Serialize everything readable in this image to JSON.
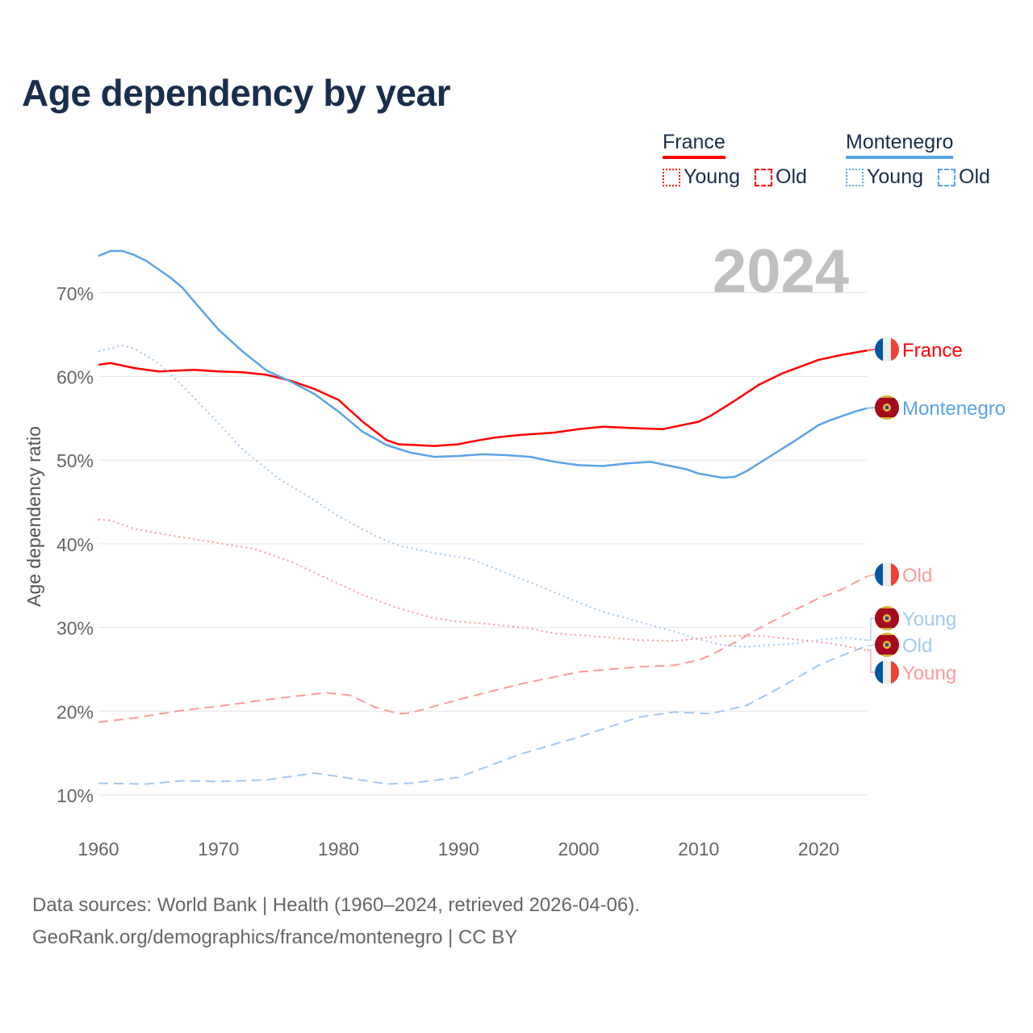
{
  "colors": {
    "france": "#ff0000",
    "france_light": "#ff9999",
    "montenegro": "#5ba3ea",
    "montenegro_light": "#a4c9f2",
    "title": "#1a2e4c",
    "year": "#c0c0c0"
  },
  "legend": {
    "france": {
      "label": "France",
      "young": "Young",
      "old": "Old"
    },
    "montenegro": {
      "label": "Montenegro",
      "young": "Young",
      "old": "Old"
    }
  },
  "footer": {
    "line1": "Data sources: World Bank | Health (1960–2024, retrieved 2026-04-06).",
    "line2": "GeoRank.org/demographics/france/montenegro | CC BY"
  },
  "chart_data": {
    "type": "line",
    "title": "Age dependency by year",
    "year_label": "2024",
    "ylabel": "Age dependency ratio",
    "xlim": [
      1960,
      2024
    ],
    "ylim": [
      10,
      75
    ],
    "yticks": [
      10,
      20,
      30,
      40,
      50,
      60,
      70
    ],
    "ytick_labels": [
      "10%",
      "20%",
      "30%",
      "40%",
      "50%",
      "60%",
      "70%"
    ],
    "xticks": [
      1960,
      1970,
      1980,
      1990,
      2000,
      2010,
      2020
    ],
    "xtick_labels": [
      "1960",
      "1970",
      "1980",
      "1990",
      "2000",
      "2010",
      "2020"
    ],
    "grid": true,
    "legend_position": "top-right",
    "series": [
      {
        "name": "France",
        "end_label": "France",
        "flag": "france",
        "color": "#ff0000",
        "dash": "solid",
        "x": [
          1960,
          1961,
          1963,
          1965,
          1968,
          1970,
          1972,
          1974,
          1976,
          1978,
          1980,
          1982,
          1984,
          1985,
          1988,
          1990,
          1991,
          1993,
          1995,
          1998,
          2000,
          2002,
          2005,
          2007,
          2009,
          2010,
          2011,
          2013,
          2015,
          2017,
          2020,
          2022,
          2024
        ],
        "y": [
          61.4,
          61.6,
          61.0,
          60.6,
          60.8,
          60.6,
          60.5,
          60.2,
          59.5,
          58.5,
          57.2,
          54.6,
          52.4,
          51.9,
          51.7,
          51.9,
          52.2,
          52.7,
          53.0,
          53.3,
          53.7,
          54.0,
          53.8,
          53.7,
          54.3,
          54.6,
          55.3,
          57.1,
          59.0,
          60.4,
          62.0,
          62.6,
          63.1
        ]
      },
      {
        "name": "Montenegro",
        "end_label": "Montenegro",
        "flag": "montenegro",
        "color": "#5ba3ea",
        "dash": "solid",
        "x": [
          1960,
          1961,
          1962,
          1963,
          1964,
          1966,
          1967,
          1968,
          1970,
          1972,
          1974,
          1976,
          1978,
          1980,
          1982,
          1984,
          1986,
          1988,
          1990,
          1992,
          1994,
          1996,
          1998,
          2000,
          2002,
          2004,
          2006,
          2008,
          2009,
          2010,
          2012,
          2013,
          2014,
          2016,
          2018,
          2020,
          2021,
          2023,
          2024
        ],
        "y": [
          74.4,
          75.0,
          75.0,
          74.5,
          73.8,
          71.8,
          70.6,
          68.9,
          65.6,
          63.0,
          60.7,
          59.4,
          57.9,
          55.8,
          53.4,
          51.8,
          50.9,
          50.4,
          50.5,
          50.7,
          50.6,
          50.4,
          49.8,
          49.4,
          49.3,
          49.6,
          49.8,
          49.2,
          48.9,
          48.4,
          47.9,
          48.0,
          48.7,
          50.5,
          52.3,
          54.2,
          54.8,
          55.8,
          56.2
        ]
      },
      {
        "name": "France Old",
        "end_label": "Old",
        "flag": "france",
        "color": "#ff9999",
        "dash": "dashed",
        "x": [
          1960,
          1963,
          1967,
          1970,
          1973,
          1977,
          1979,
          1981,
          1983,
          1985,
          1986,
          1990,
          1995,
          2000,
          2005,
          2008,
          2010,
          2011,
          2013,
          2015,
          2018,
          2020,
          2022,
          2024
        ],
        "y": [
          18.7,
          19.2,
          20.1,
          20.6,
          21.2,
          21.9,
          22.2,
          21.9,
          20.5,
          19.7,
          19.8,
          21.4,
          23.2,
          24.7,
          25.3,
          25.5,
          26.1,
          26.7,
          28.2,
          29.9,
          32.1,
          33.5,
          34.6,
          36.1
        ]
      },
      {
        "name": "Montenegro Young",
        "end_label": "Young",
        "flag": "montenegro",
        "color": "#a4c9f2",
        "dash": "dotted",
        "x": [
          1960,
          1962,
          1963,
          1965,
          1967,
          1970,
          1972,
          1975,
          1978,
          1980,
          1983,
          1985,
          1988,
          1991,
          1994,
          1997,
          2000,
          2002,
          2005,
          2008,
          2010,
          2012,
          2014,
          2016,
          2018,
          2020,
          2022,
          2024
        ],
        "y": [
          63.0,
          63.7,
          63.3,
          61.6,
          58.9,
          54.4,
          51.3,
          47.8,
          45.2,
          43.3,
          41.0,
          39.8,
          38.9,
          38.2,
          36.5,
          34.8,
          33.0,
          31.9,
          30.7,
          29.5,
          28.6,
          27.9,
          27.7,
          27.9,
          28.1,
          28.5,
          28.8,
          28.5
        ]
      },
      {
        "name": "Montenegro Old",
        "end_label": "Old",
        "flag": "montenegro",
        "color": "#a4c9f2",
        "dash": "dashed",
        "x": [
          1960,
          1964,
          1967,
          1970,
          1974,
          1978,
          1980,
          1984,
          1986,
          1990,
          1995,
          2000,
          2005,
          2008,
          2011,
          2014,
          2017,
          2020,
          2022,
          2024
        ],
        "y": [
          11.4,
          11.3,
          11.7,
          11.6,
          11.8,
          12.6,
          12.2,
          11.3,
          11.4,
          12.1,
          14.8,
          16.9,
          19.3,
          19.9,
          19.7,
          20.7,
          23.0,
          25.5,
          26.7,
          27.8
        ]
      },
      {
        "name": "France Young",
        "end_label": "Young",
        "flag": "france",
        "color": "#ff9999",
        "dash": "dotted",
        "x": [
          1960,
          1961,
          1963,
          1966,
          1970,
          1973,
          1976,
          1979,
          1982,
          1985,
          1988,
          1990,
          1992,
          1996,
          1998,
          2001,
          2005,
          2008,
          2010,
          2012,
          2015,
          2018,
          2021,
          2024
        ],
        "y": [
          42.9,
          42.8,
          41.8,
          41.0,
          40.1,
          39.4,
          37.9,
          35.9,
          33.9,
          32.3,
          31.1,
          30.7,
          30.5,
          29.9,
          29.3,
          29.0,
          28.5,
          28.4,
          28.7,
          29.0,
          29.0,
          28.6,
          28.1,
          27.3
        ]
      }
    ]
  }
}
